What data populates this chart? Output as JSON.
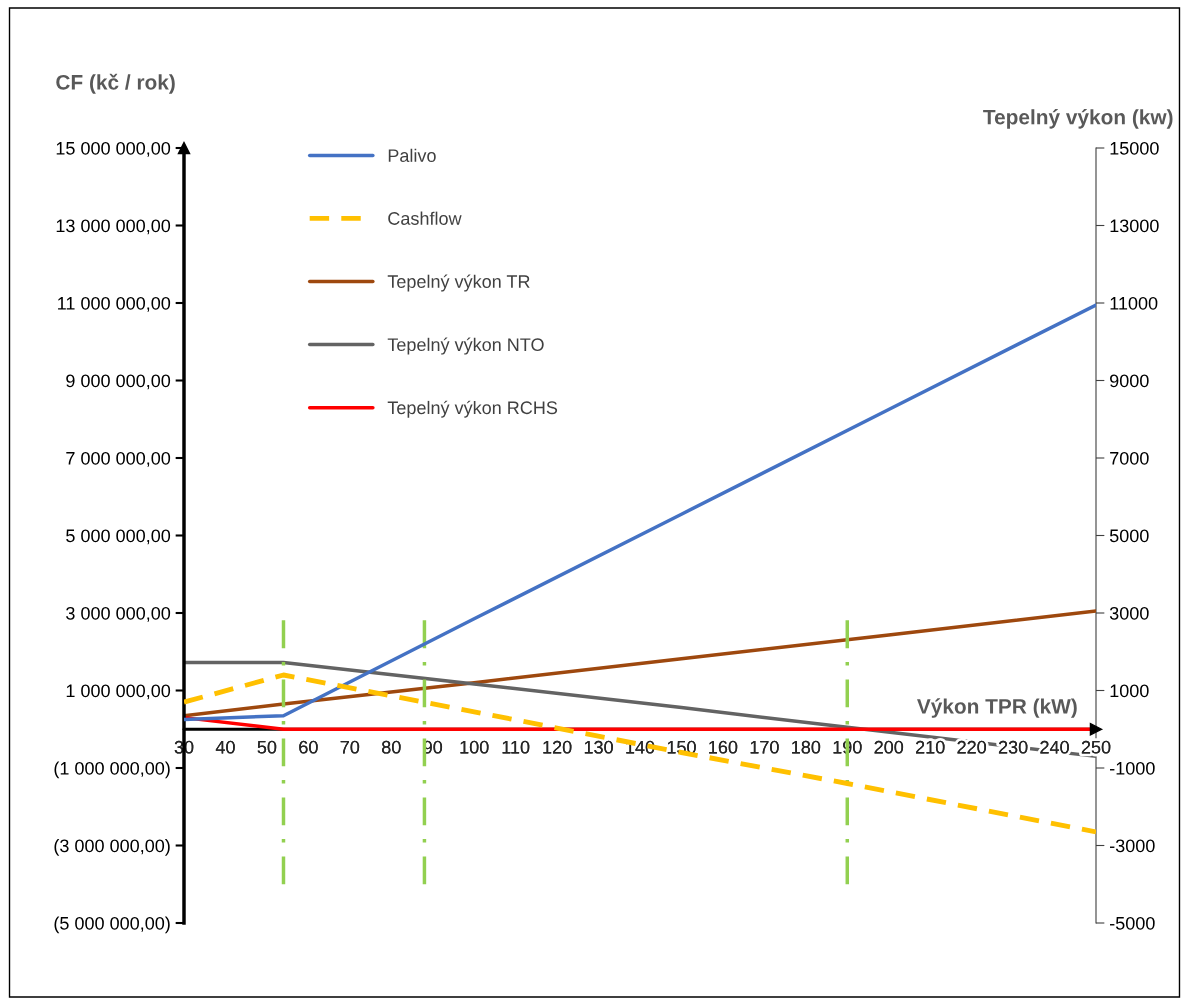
{
  "chart_data": {
    "type": "line",
    "xlabel": "Výkon TPR (kW)",
    "ylabel": "CF (kč / rok)",
    "y2label": "Tepelný výkon (kw)",
    "series": [
      {
        "name": "Palivo",
        "color": "#4472c4",
        "line_style": "solid",
        "axis": "y",
        "x": [
          30,
          54,
          100,
          150,
          200,
          250
        ],
        "values": [
          250000,
          350000,
          2850000,
          5550000,
          8250000,
          10950000
        ]
      },
      {
        "name": "Cashflow",
        "color": "#ffc000",
        "line_style": "dashed",
        "axis": "y",
        "x": [
          30,
          54,
          100,
          150,
          190,
          250
        ],
        "values": [
          700000,
          1400000,
          450000,
          -600000,
          -1400000,
          -2650000
        ]
      },
      {
        "name": "Tepelný výkon TR",
        "color": "#9e480e",
        "line_style": "solid",
        "axis": "y2",
        "x": [
          30,
          54,
          100,
          150,
          200,
          250
        ],
        "values": [
          350,
          650,
          1200,
          1820,
          2430,
          3050
        ]
      },
      {
        "name": "Tepelný výkon NTO",
        "color": "#636363",
        "line_style": "solid",
        "axis": "y2",
        "x": [
          30,
          54,
          100,
          150,
          190,
          250
        ],
        "values": [
          1720,
          1720,
          1170,
          560,
          50,
          -700
        ]
      },
      {
        "name": "Tepelný výkon RCHS",
        "color": "#ff0000",
        "line_style": "solid",
        "axis": "y2",
        "x": [
          30,
          54,
          250
        ],
        "values": [
          300,
          0,
          0
        ]
      }
    ],
    "xlim": [
      30,
      250
    ],
    "xticks": [
      30,
      40,
      50,
      60,
      70,
      80,
      90,
      100,
      110,
      120,
      130,
      140,
      150,
      160,
      170,
      180,
      190,
      200,
      210,
      220,
      230,
      240,
      250
    ],
    "ylim": [
      -5000000,
      15000000
    ],
    "yticks": [
      {
        "value": -5000000,
        "label": "(5 000 000,00)"
      },
      {
        "value": -3000000,
        "label": "(3 000 000,00)"
      },
      {
        "value": -1000000,
        "label": "(1 000 000,00)"
      },
      {
        "value": 1000000,
        "label": "1 000 000,00"
      },
      {
        "value": 3000000,
        "label": "3 000 000,00"
      },
      {
        "value": 5000000,
        "label": "5 000 000,00"
      },
      {
        "value": 7000000,
        "label": "7 000 000,00"
      },
      {
        "value": 9000000,
        "label": "9 000 000,00"
      },
      {
        "value": 11000000,
        "label": "11 000 000,00"
      },
      {
        "value": 13000000,
        "label": "13 000 000,00"
      },
      {
        "value": 15000000,
        "label": "15 000 000,00"
      }
    ],
    "y2lim": [
      -5000,
      15000
    ],
    "y2ticks": [
      -5000,
      -3000,
      -1000,
      1000,
      3000,
      5000,
      7000,
      9000,
      11000,
      13000,
      15000
    ],
    "ref_lines": [
      {
        "axis": "x",
        "value": 54,
        "color": "#92d050",
        "line_style": "dashdot"
      },
      {
        "axis": "x",
        "value": 88,
        "color": "#92d050",
        "line_style": "dashdot"
      },
      {
        "axis": "x",
        "value": 190,
        "color": "#92d050",
        "line_style": "dashdot"
      }
    ],
    "grid": false,
    "legend": "top left",
    "marker": "none"
  }
}
